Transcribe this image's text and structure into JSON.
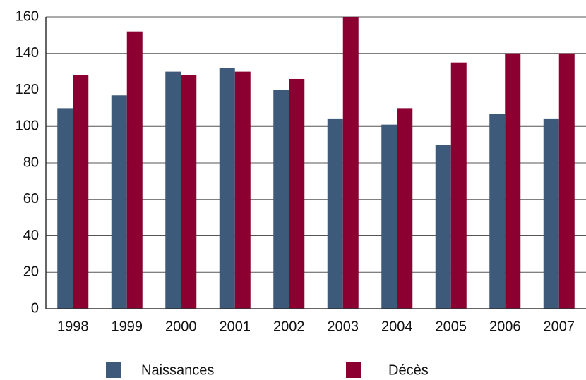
{
  "chart_data": {
    "type": "bar",
    "categories": [
      "1998",
      "1999",
      "2000",
      "2001",
      "2002",
      "2003",
      "2004",
      "2005",
      "2006",
      "2007"
    ],
    "series": [
      {
        "name": "Naissances",
        "color": "#3d5a7a",
        "values": [
          110,
          117,
          130,
          132,
          120,
          104,
          101,
          90,
          107,
          104
        ]
      },
      {
        "name": "Décès",
        "color": "#8b0030",
        "values": [
          128,
          152,
          128,
          130,
          126,
          160,
          110,
          135,
          140,
          140
        ]
      }
    ],
    "ylim": [
      0,
      160
    ],
    "yticks": [
      0,
      20,
      40,
      60,
      80,
      100,
      120,
      140,
      160
    ],
    "grid": true,
    "legend": "bottom"
  }
}
